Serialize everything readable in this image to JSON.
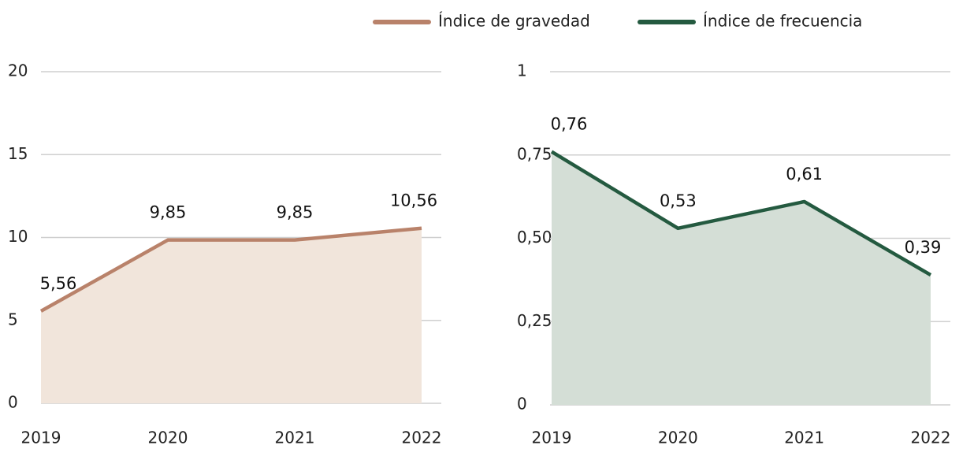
{
  "chart_data": [
    {
      "type": "area",
      "categories": [
        "2019",
        "2020",
        "2021",
        "2022"
      ],
      "series": [
        {
          "name": "Índice de gravedad",
          "color": "#b9826a",
          "fill": "#f1e5db",
          "values": [
            5.56,
            9.85,
            9.85,
            10.56
          ],
          "value_labels": [
            "5,56",
            "9,85",
            "9,85",
            "10,56"
          ]
        }
      ],
      "ylim": [
        0,
        20
      ],
      "yticks": [
        0,
        5,
        10,
        15,
        20
      ],
      "grid": true
    },
    {
      "type": "area",
      "categories": [
        "2019",
        "2020",
        "2021",
        "2022"
      ],
      "series": [
        {
          "name": "Índice de frecuencia",
          "color": "#245a40",
          "fill": "#d4ded6",
          "values": [
            0.76,
            0.53,
            0.61,
            0.39
          ],
          "value_labels": [
            "0,76",
            "0,53",
            "0,61",
            "0,39"
          ]
        }
      ],
      "ylim": [
        0,
        1
      ],
      "yticks": [
        0,
        {
          "value": 0.25,
          "label": "0,25"
        },
        {
          "value": 0.5,
          "label": "0,50"
        },
        {
          "value": 0.75,
          "label": "0,75"
        },
        1
      ],
      "grid": true
    }
  ]
}
